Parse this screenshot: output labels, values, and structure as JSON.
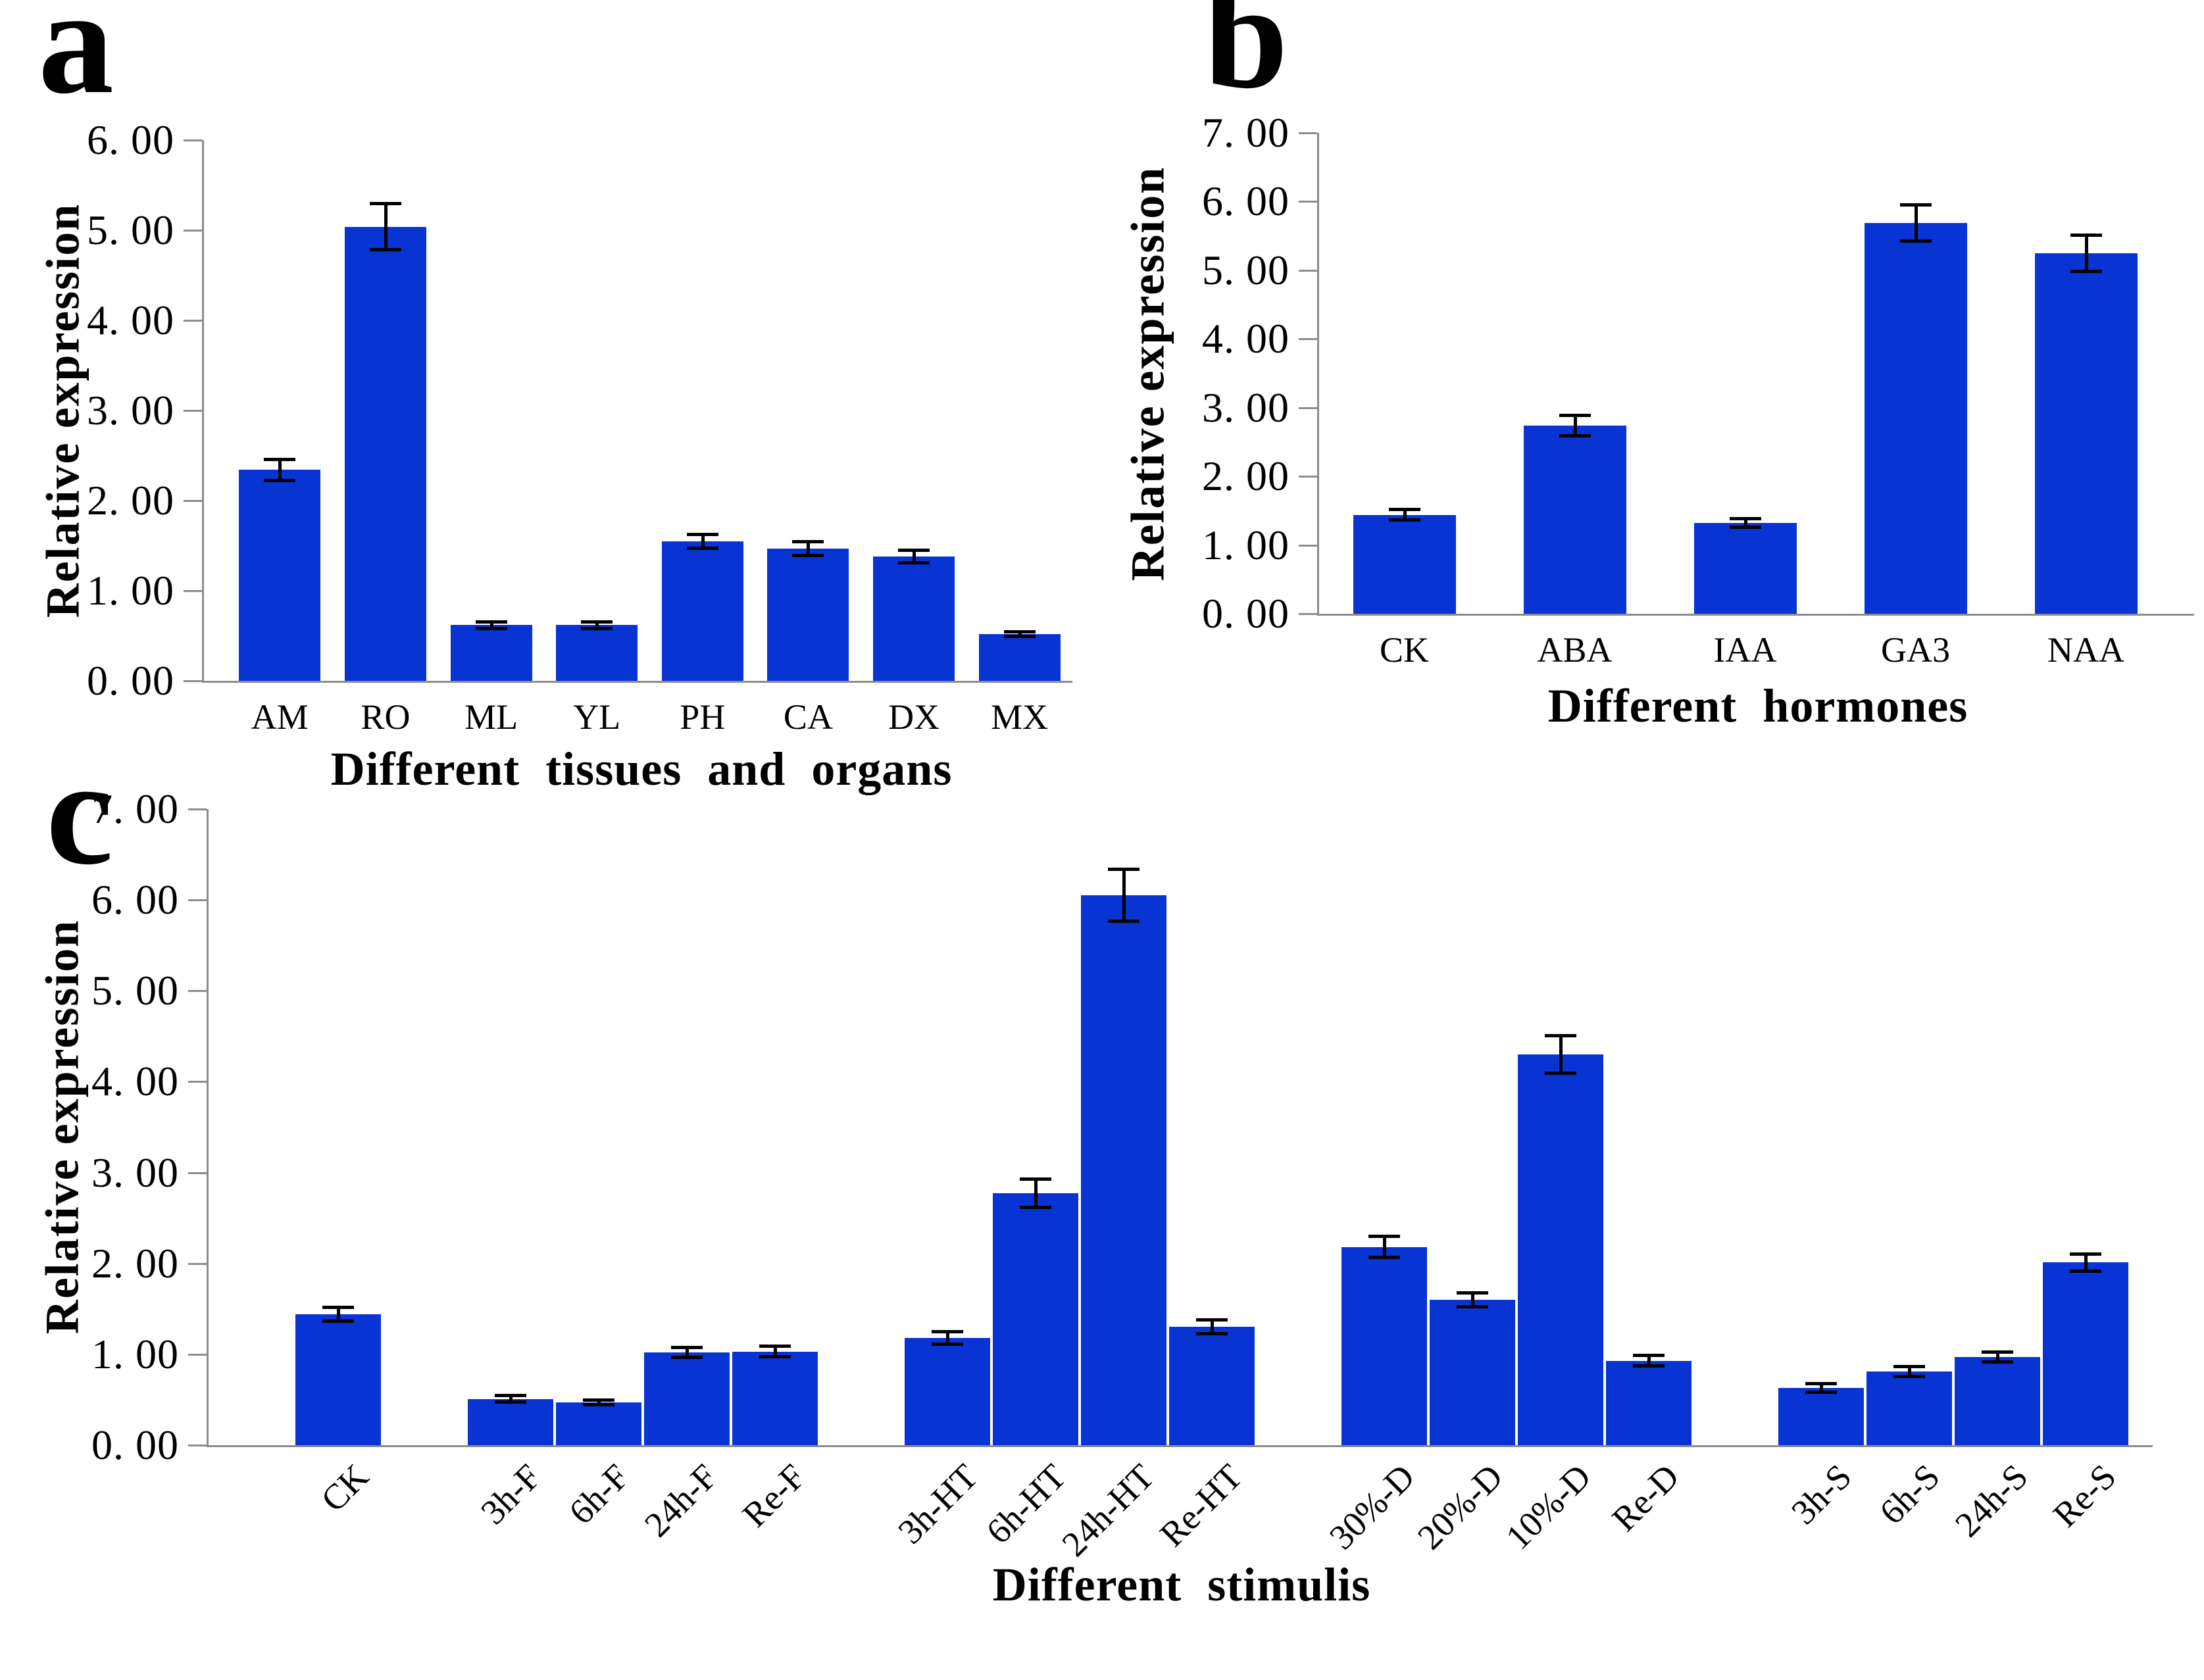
{
  "style": {
    "bar_color": "#0834d4",
    "axis_color": "#8c8c8c",
    "error_color": "#000000",
    "background": "#ffffff"
  },
  "chart_data": [
    {
      "id": "a",
      "type": "bar",
      "panel_letter": "a",
      "ylabel": "Relative expression",
      "xlabel": "Different tissues and organs",
      "categories": [
        "AM",
        "RO",
        "ML",
        "YL",
        "PH",
        "CA",
        "DX",
        "MX"
      ],
      "values": [
        2.34,
        5.04,
        0.62,
        0.62,
        1.55,
        1.47,
        1.38,
        0.52
      ],
      "errors": [
        0.12,
        0.26,
        0.04,
        0.04,
        0.08,
        0.08,
        0.07,
        0.03
      ],
      "ylim": [
        0,
        6
      ],
      "ytick_step": 1,
      "ytick_labels": [
        "0. 00",
        "1. 00",
        "2. 00",
        "3. 00",
        "4. 00",
        "5. 00",
        "6. 00"
      ],
      "grid": false,
      "legend": "none",
      "bar_color": "#0834d4",
      "error_bars": true
    },
    {
      "id": "b",
      "type": "bar",
      "panel_letter": "b",
      "ylabel": "Relative expression",
      "xlabel": "Different hormones",
      "categories": [
        "CK",
        "ABA",
        "IAA",
        "GA3",
        "NAA"
      ],
      "values": [
        1.44,
        2.74,
        1.32,
        5.69,
        5.25
      ],
      "errors": [
        0.08,
        0.15,
        0.07,
        0.27,
        0.27
      ],
      "ylim": [
        0,
        7
      ],
      "ytick_step": 1,
      "ytick_labels": [
        "0. 00",
        "1. 00",
        "2. 00",
        "3. 00",
        "4. 00",
        "5. 00",
        "6. 00",
        "7. 00"
      ],
      "grid": false,
      "legend": "none",
      "bar_color": "#0834d4",
      "error_bars": true
    },
    {
      "id": "c",
      "type": "bar",
      "panel_letter": "c",
      "ylabel": "Relative expression",
      "xlabel": "Different stimulis",
      "categories": [
        "CK",
        "3h-F",
        "6h-F",
        "24h-F",
        "Re-F",
        "3h-HT",
        "6h-HT",
        "24h-HT",
        "Re-HT",
        "30%-D",
        "20%-D",
        "10%-D",
        "Re-D",
        "3h-S",
        "6h-S",
        "24h-S",
        "Re-S"
      ],
      "values": [
        1.44,
        0.51,
        0.47,
        1.02,
        1.03,
        1.18,
        2.77,
        6.05,
        1.3,
        2.18,
        1.6,
        4.3,
        0.93,
        0.63,
        0.81,
        0.97,
        2.01
      ],
      "errors": [
        0.08,
        0.04,
        0.03,
        0.06,
        0.06,
        0.07,
        0.16,
        0.29,
        0.08,
        0.12,
        0.08,
        0.21,
        0.06,
        0.05,
        0.06,
        0.06,
        0.1
      ],
      "groups": [
        1,
        4,
        4,
        4,
        4
      ],
      "ylim": [
        0,
        7
      ],
      "ytick_step": 1,
      "ytick_labels": [
        "0. 00",
        "1. 00",
        "2. 00",
        "3. 00",
        "4. 00",
        "5. 00",
        "6. 00",
        "7. 00"
      ],
      "grid": false,
      "legend": "none",
      "bar_color": "#0834d4",
      "error_bars": true,
      "x_tick_rotation_deg": 45
    }
  ]
}
